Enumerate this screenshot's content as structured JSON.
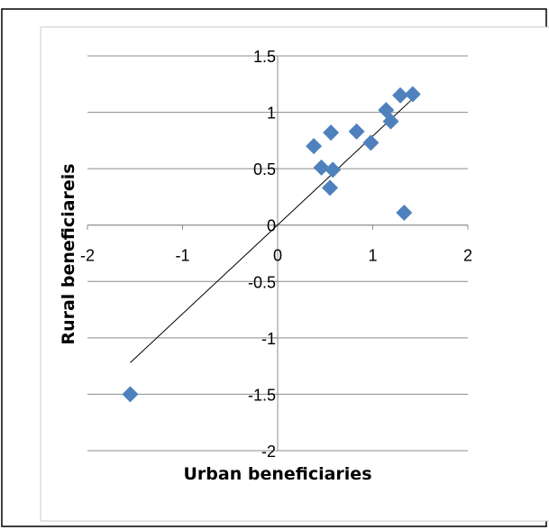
{
  "chart_data": {
    "type": "scatter",
    "title": "",
    "xlabel": "Urban beneficiaries",
    "ylabel": "Rural beneficiareis",
    "xlim": [
      -2,
      2
    ],
    "ylim": [
      -2,
      1.5
    ],
    "x_ticks": [
      "-2",
      "-1",
      "0",
      "1",
      "2"
    ],
    "y_ticks": [
      "1.5",
      "1",
      "0.5",
      "0",
      "-0.5",
      "-1",
      "-1.5",
      "-2"
    ],
    "x_tick_values": [
      -2,
      -1,
      0,
      1,
      2
    ],
    "y_tick_values": [
      1.5,
      1,
      0.5,
      0,
      -0.5,
      -1,
      -1.5,
      -2
    ],
    "grid": "horizontal",
    "marker_color": "#4F81BD",
    "marker": "diamond",
    "series": [
      {
        "points": [
          {
            "x": -1.55,
            "y": -1.5
          },
          {
            "x": 0.38,
            "y": 0.7
          },
          {
            "x": 0.46,
            "y": 0.51
          },
          {
            "x": 0.55,
            "y": 0.33
          },
          {
            "x": 0.56,
            "y": 0.82
          },
          {
            "x": 0.58,
            "y": 0.49
          },
          {
            "x": 0.83,
            "y": 0.83
          },
          {
            "x": 0.98,
            "y": 0.73
          },
          {
            "x": 1.14,
            "y": 1.02
          },
          {
            "x": 1.19,
            "y": 0.92
          },
          {
            "x": 1.29,
            "y": 1.15
          },
          {
            "x": 1.42,
            "y": 1.16
          },
          {
            "x": 1.33,
            "y": 0.11
          }
        ]
      }
    ],
    "trendline": {
      "x": [
        -1.55,
        1.42
      ],
      "y": [
        -1.22,
        1.12
      ],
      "color": "#000000"
    }
  }
}
